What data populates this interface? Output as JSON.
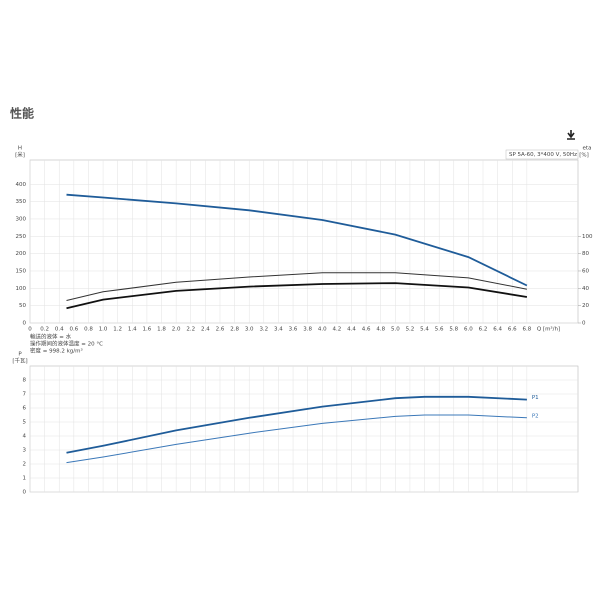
{
  "header": {
    "title": "性能"
  },
  "chart_data": [
    {
      "type": "line",
      "legend_text": "SP 5A-60, 3*400 V, 50Hz",
      "ylabel": "H",
      "yunit": "[米]",
      "y2label": "eta",
      "y2unit": "[%]",
      "xlabel": "Q [m³/h]",
      "notes": [
        "輸送的液体 = 水",
        "操作期间的液体温度 = 20 °C",
        "密度 = 998.2 kg/m³"
      ],
      "x": [
        0.5,
        1,
        2,
        3,
        4,
        5,
        6,
        6.8
      ],
      "series": [
        {
          "color": "#1f5c99",
          "width": 1.8,
          "values": [
            370,
            362,
            345,
            325,
            297,
            255,
            190,
            108
          ]
        },
        {
          "color": "#333333",
          "width": 1,
          "axis": "y2",
          "values": [
            26,
            36,
            47,
            53,
            58,
            58,
            52,
            39
          ]
        },
        {
          "color": "#111111",
          "width": 1.8,
          "axis": "y2",
          "values": [
            17,
            27,
            37,
            42,
            45,
            46,
            41,
            30
          ]
        }
      ],
      "xlim": [
        0,
        7.5
      ],
      "xticks": [
        0,
        0.2,
        0.4,
        0.6,
        0.8,
        {
          "value": 1,
          "label": "1.0"
        },
        1.2,
        1.4,
        1.6,
        1.8,
        {
          "value": 2,
          "label": "2.0"
        },
        2.2,
        2.4,
        2.6,
        2.8,
        {
          "value": 3,
          "label": "3.0"
        },
        3.2,
        3.4,
        3.6,
        3.8,
        {
          "value": 4,
          "label": "4.0"
        },
        4.2,
        4.4,
        4.6,
        4.8,
        {
          "value": 5,
          "label": "5.0"
        },
        5.2,
        5.4,
        5.6,
        5.8,
        {
          "value": 6,
          "label": "6.0"
        },
        6.2,
        6.4,
        6.6,
        6.8
      ],
      "ylim": [
        0,
        470
      ],
      "yticks": [
        0,
        50,
        100,
        150,
        200,
        250,
        300,
        350,
        400
      ],
      "y2lim": [
        0,
        188
      ],
      "y2ticks": [
        0,
        20,
        40,
        60,
        80,
        100
      ],
      "grid": true
    },
    {
      "type": "line",
      "ylabel": "P",
      "yunit": "[千瓦]",
      "x": [
        0.5,
        1,
        2,
        3,
        4,
        5,
        5.4,
        6,
        6.8
      ],
      "series": [
        {
          "name": "P1",
          "color": "#1f5c99",
          "width": 1.8,
          "values": [
            2.8,
            3.3,
            4.4,
            5.3,
            6.1,
            6.7,
            6.8,
            6.8,
            6.6
          ]
        },
        {
          "name": "P2",
          "color": "#3b78b8",
          "width": 1,
          "values": [
            2.1,
            2.5,
            3.4,
            4.2,
            4.9,
            5.4,
            5.5,
            5.5,
            5.3
          ]
        }
      ],
      "xlim": [
        0,
        7.5
      ],
      "xticks": [
        0,
        0.2,
        0.4,
        0.6,
        0.8,
        1,
        1.2,
        1.4,
        1.6,
        1.8,
        2,
        2.2,
        2.4,
        2.6,
        2.8,
        3,
        3.2,
        3.4,
        3.6,
        3.8,
        4,
        4.2,
        4.4,
        4.6,
        4.8,
        5,
        5.2,
        5.4,
        5.6,
        5.8,
        6,
        6.2,
        6.4,
        6.6,
        6.8
      ],
      "ylim": [
        0,
        9
      ],
      "yticks": [
        0,
        1,
        2,
        3,
        4,
        5,
        6,
        7,
        8
      ],
      "grid": true
    }
  ]
}
